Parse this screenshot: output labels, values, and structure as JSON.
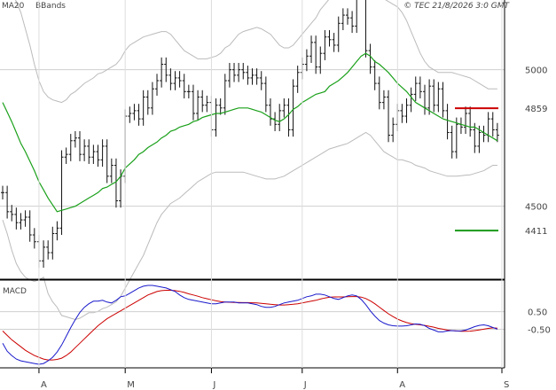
{
  "chart_data": {
    "type": "ohlc",
    "legend": {
      "ma": {
        "label": "MA20",
        "color": "#1aa01a"
      },
      "bb": {
        "label": "BBands",
        "color": "#bbbbbb"
      }
    },
    "copyright": "© TEC 21/8/2026 3:0 GMT",
    "price_axis": {
      "ylim": [
        4236,
        5210
      ],
      "ticks": [
        {
          "value": 4500,
          "label": "4500"
        },
        {
          "value": 5000,
          "label": "5000"
        }
      ]
    },
    "levels": [
      {
        "value": 4859,
        "label": "4859",
        "color": "#cc0000"
      },
      {
        "value": 4411,
        "label": "4411",
        "color": "#1a9a1a"
      }
    ],
    "x_axis": {
      "bars": 110,
      "months": [
        {
          "label": "A",
          "index": 8
        },
        {
          "label": "M",
          "index": 27
        },
        {
          "label": "J",
          "index": 46
        },
        {
          "label": "J",
          "index": 66
        },
        {
          "label": "A",
          "index": 87
        },
        {
          "label": "S",
          "index": 110
        }
      ]
    },
    "close": [
      4550,
      4480,
      4470,
      4440,
      4450,
      4460,
      4395,
      4370,
      4300,
      4350,
      4330,
      4400,
      4420,
      4680,
      4690,
      4740,
      4750,
      4690,
      4720,
      4680,
      4700,
      4670,
      4720,
      4610,
      4650,
      4520,
      4610,
      4830,
      4840,
      4850,
      4820,
      4900,
      4860,
      4930,
      4960,
      5020,
      4980,
      4950,
      4970,
      4960,
      4920,
      4920,
      4840,
      4900,
      4870,
      4880,
      4780,
      4870,
      4860,
      4960,
      5000,
      4980,
      5000,
      4990,
      4970,
      4980,
      4970,
      4950,
      4870,
      4820,
      4800,
      4850,
      4870,
      4780,
      4940,
      4990,
      5020,
      5050,
      5100,
      5010,
      5060,
      5120,
      5110,
      5090,
      5170,
      5200,
      5190,
      5160,
      5300,
      5350,
      5070,
      5010,
      4950,
      4880,
      4900,
      4760,
      4800,
      4850,
      4830,
      4870,
      4910,
      4950,
      4920,
      4860,
      4940,
      4870,
      4930,
      4850,
      4770,
      4700,
      4800,
      4790,
      4840,
      4780,
      4720,
      4770,
      4760,
      4820,
      4780,
      4760
    ],
    "ma20": [
      4880,
      4845,
      4810,
      4770,
      4730,
      4700,
      4665,
      4630,
      4590,
      4560,
      4530,
      4505,
      4480,
      4485,
      4490,
      4495,
      4500,
      4510,
      4520,
      4530,
      4540,
      4550,
      4565,
      4570,
      4580,
      4590,
      4610,
      4640,
      4655,
      4670,
      4690,
      4700,
      4715,
      4725,
      4735,
      4750,
      4760,
      4775,
      4780,
      4790,
      4795,
      4800,
      4810,
      4815,
      4825,
      4830,
      4835,
      4840,
      4840,
      4845,
      4850,
      4855,
      4860,
      4860,
      4860,
      4855,
      4850,
      4845,
      4835,
      4825,
      4815,
      4810,
      4820,
      4835,
      4855,
      4865,
      4880,
      4890,
      4900,
      4910,
      4915,
      4920,
      4940,
      4950,
      4960,
      4975,
      4990,
      5010,
      5030,
      5050,
      5060,
      5050,
      5030,
      5020,
      5005,
      4990,
      4970,
      4950,
      4935,
      4920,
      4900,
      4880,
      4870,
      4860,
      4850,
      4840,
      4830,
      4820,
      4815,
      4810,
      4805,
      4800,
      4795,
      4790,
      4790,
      4780,
      4770,
      4760,
      4750,
      4740
    ],
    "bb_upper": [
      5310,
      5300,
      5280,
      5250,
      5210,
      5150,
      5090,
      5020,
      4960,
      4920,
      4900,
      4890,
      4885,
      4880,
      4890,
      4910,
      4920,
      4935,
      4950,
      4960,
      4970,
      4985,
      4990,
      5000,
      5010,
      5020,
      5040,
      5070,
      5090,
      5100,
      5110,
      5120,
      5125,
      5130,
      5135,
      5140,
      5140,
      5130,
      5110,
      5090,
      5070,
      5060,
      5050,
      5040,
      5040,
      5040,
      5045,
      5050,
      5060,
      5080,
      5090,
      5110,
      5130,
      5140,
      5145,
      5150,
      5155,
      5150,
      5140,
      5130,
      5110,
      5090,
      5080,
      5080,
      5090,
      5110,
      5130,
      5150,
      5170,
      5190,
      5220,
      5240,
      5260,
      5280,
      5300,
      5320,
      5330,
      5330,
      5340,
      5340,
      5330,
      5320,
      5300,
      5280,
      5260,
      5250,
      5240,
      5230,
      5210,
      5180,
      5140,
      5100,
      5060,
      5030,
      5010,
      5000,
      4990,
      4990,
      4990,
      4990,
      4985,
      4980,
      4975,
      4970,
      4960,
      4950,
      4940,
      4930,
      4930,
      4930
    ],
    "bb_lower": [
      4450,
      4400,
      4340,
      4290,
      4260,
      4240,
      4230,
      4225,
      4230,
      4240,
      4180,
      4150,
      4130,
      4100,
      4095,
      4090,
      4085,
      4090,
      4100,
      4110,
      4110,
      4115,
      4125,
      4130,
      4140,
      4150,
      4170,
      4200,
      4230,
      4260,
      4290,
      4320,
      4360,
      4400,
      4440,
      4470,
      4490,
      4510,
      4520,
      4530,
      4545,
      4560,
      4575,
      4590,
      4600,
      4610,
      4620,
      4625,
      4625,
      4625,
      4625,
      4625,
      4625,
      4625,
      4620,
      4615,
      4610,
      4605,
      4600,
      4600,
      4600,
      4605,
      4610,
      4620,
      4630,
      4640,
      4650,
      4660,
      4670,
      4680,
      4690,
      4700,
      4710,
      4715,
      4720,
      4725,
      4730,
      4740,
      4750,
      4760,
      4770,
      4760,
      4740,
      4720,
      4700,
      4690,
      4680,
      4670,
      4670,
      4665,
      4660,
      4650,
      4645,
      4640,
      4630,
      4625,
      4620,
      4615,
      4610,
      4610,
      4610,
      4612,
      4614,
      4615,
      4620,
      4625,
      4630,
      4640,
      4650,
      4650
    ],
    "macd_panel": {
      "label": "MACD",
      "ylim": [
        -2.7,
        2.2
      ],
      "ticks": [
        {
          "value": 0.5,
          "label": "0.50"
        },
        {
          "value": -0.5,
          "label": "-0.50"
        }
      ],
      "macd_color": "#1a1acc",
      "signal_color": "#cc0000",
      "macd": [
        -1.3,
        -1.75,
        -2,
        -2.2,
        -2.3,
        -2.35,
        -2.4,
        -2.45,
        -2.5,
        -2.45,
        -2.3,
        -2.1,
        -1.8,
        -1.4,
        -0.9,
        -0.4,
        0.05,
        0.45,
        0.75,
        0.95,
        1.1,
        1.1,
        1.15,
        1.05,
        1.0,
        1.15,
        1.35,
        1.4,
        1.55,
        1.7,
        1.85,
        1.95,
        2.0,
        2.0,
        1.95,
        1.9,
        1.85,
        1.75,
        1.65,
        1.45,
        1.3,
        1.2,
        1.15,
        1.1,
        1.05,
        1.0,
        0.95,
        0.95,
        1.0,
        1.05,
        1.05,
        1.05,
        1.0,
        1.0,
        1.0,
        0.95,
        0.9,
        0.8,
        0.75,
        0.75,
        0.8,
        0.9,
        1.0,
        1.05,
        1.1,
        1.15,
        1.25,
        1.35,
        1.4,
        1.5,
        1.5,
        1.45,
        1.35,
        1.25,
        1.2,
        1.3,
        1.4,
        1.45,
        1.4,
        1.2,
        0.9,
        0.55,
        0.25,
        0,
        -0.15,
        -0.25,
        -0.3,
        -0.32,
        -0.32,
        -0.3,
        -0.25,
        -0.2,
        -0.22,
        -0.3,
        -0.45,
        -0.55,
        -0.65,
        -0.65,
        -0.6,
        -0.58,
        -0.6,
        -0.6,
        -0.55,
        -0.45,
        -0.35,
        -0.28,
        -0.25,
        -0.3,
        -0.4,
        -0.5
      ],
      "signal": [
        -0.6,
        -0.85,
        -1.1,
        -1.3,
        -1.5,
        -1.7,
        -1.85,
        -2.0,
        -2.1,
        -2.2,
        -2.25,
        -2.25,
        -2.22,
        -2.15,
        -2.0,
        -1.8,
        -1.55,
        -1.3,
        -1.05,
        -0.8,
        -0.55,
        -0.3,
        -0.1,
        0.1,
        0.25,
        0.4,
        0.55,
        0.7,
        0.85,
        1.0,
        1.15,
        1.3,
        1.45,
        1.55,
        1.65,
        1.7,
        1.72,
        1.72,
        1.7,
        1.66,
        1.6,
        1.52,
        1.45,
        1.38,
        1.3,
        1.24,
        1.18,
        1.12,
        1.08,
        1.05,
        1.04,
        1.03,
        1.03,
        1.02,
        1.02,
        1.01,
        1.0,
        0.98,
        0.95,
        0.92,
        0.9,
        0.88,
        0.88,
        0.9,
        0.92,
        0.95,
        1.0,
        1.05,
        1.1,
        1.15,
        1.22,
        1.28,
        1.32,
        1.34,
        1.34,
        1.34,
        1.35,
        1.36,
        1.36,
        1.33,
        1.25,
        1.12,
        0.95,
        0.76,
        0.57,
        0.38,
        0.22,
        0.08,
        -0.03,
        -0.12,
        -0.18,
        -0.22,
        -0.25,
        -0.28,
        -0.33,
        -0.38,
        -0.45,
        -0.5,
        -0.55,
        -0.58,
        -0.6,
        -0.62,
        -0.62,
        -0.61,
        -0.58,
        -0.54,
        -0.5,
        -0.45,
        -0.42,
        -0.44
      ]
    }
  }
}
